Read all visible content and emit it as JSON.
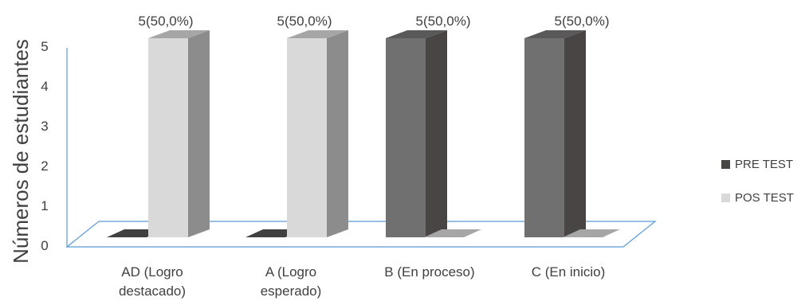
{
  "chart_data": {
    "type": "bar",
    "title": "",
    "xlabel": "",
    "ylabel": "Números de estudiantes",
    "ylim": [
      0,
      5
    ],
    "yticks": [
      0,
      1,
      2,
      3,
      4,
      5
    ],
    "categories": [
      [
        "AD (Logro",
        "destacado)"
      ],
      [
        "A (Logro",
        "esperado)"
      ],
      [
        "B (En proceso)"
      ],
      [
        "C (En inicio)"
      ]
    ],
    "series": [
      {
        "name": "PRE TEST",
        "values": [
          0,
          0,
          5,
          5
        ],
        "color": "#707070",
        "side_color": "#4a4545",
        "top_color": "#595959"
      },
      {
        "name": "POS TEST",
        "values": [
          5,
          5,
          0,
          0
        ],
        "color": "#d9d9d9",
        "side_color": "#8c8c8c",
        "top_color": "#a6a6a6"
      }
    ],
    "data_labels": [
      "5(50,0%)",
      "5(50,0%)",
      "5(50,0%)",
      "5(50,0%)"
    ],
    "legend_position": "right",
    "floor_line_color": "#5b9bd5"
  }
}
